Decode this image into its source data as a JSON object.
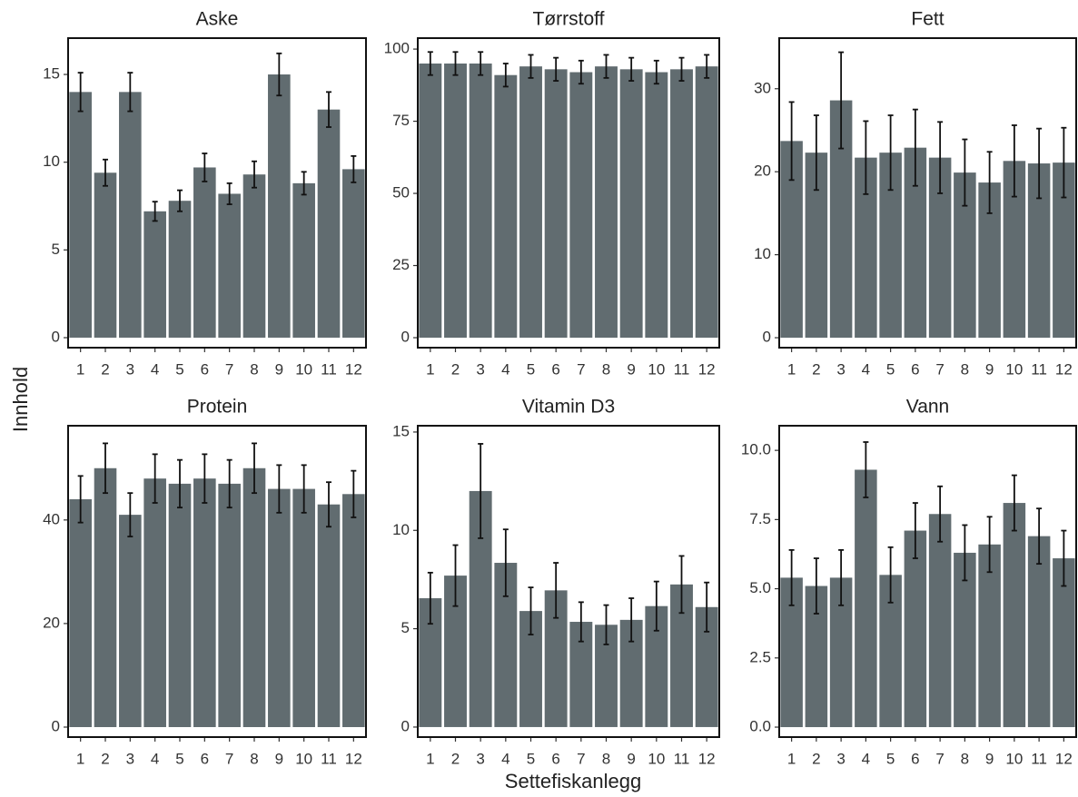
{
  "x_label": "Settefiskanlegg",
  "y_label": "Innhold",
  "chart_data": [
    {
      "type": "bar",
      "title": "Aske",
      "color": "#616c70",
      "categories": [
        "1",
        "2",
        "3",
        "4",
        "5",
        "6",
        "7",
        "8",
        "9",
        "10",
        "11",
        "12"
      ],
      "values": [
        14,
        9.4,
        14,
        7.2,
        7.8,
        9.7,
        8.2,
        9.3,
        15,
        8.8,
        13,
        9.6
      ],
      "errors": [
        1.1,
        0.75,
        1.1,
        0.55,
        0.6,
        0.8,
        0.6,
        0.75,
        1.2,
        0.65,
        1.0,
        0.75
      ],
      "ylim": [
        -0.57,
        17.07
      ],
      "yticks": [
        0,
        5,
        10,
        15
      ]
    },
    {
      "type": "bar",
      "title": "Tørrstoff",
      "color": "#616c70",
      "categories": [
        "1",
        "2",
        "3",
        "4",
        "5",
        "6",
        "7",
        "8",
        "9",
        "10",
        "11",
        "12"
      ],
      "values": [
        95,
        95,
        95,
        91,
        94,
        93,
        92,
        94,
        93,
        92,
        93,
        94
      ],
      "errors": [
        4,
        4,
        4,
        4,
        4,
        4,
        4,
        4,
        4,
        4,
        4,
        4
      ],
      "ylim": [
        -3.46,
        103.8
      ],
      "yticks": [
        0,
        25,
        50,
        75,
        100
      ]
    },
    {
      "type": "bar",
      "title": "Fett",
      "color": "#616c70",
      "categories": [
        "1",
        "2",
        "3",
        "4",
        "5",
        "6",
        "7",
        "8",
        "9",
        "10",
        "11",
        "12"
      ],
      "values": [
        23.7,
        22.3,
        28.6,
        21.7,
        22.3,
        22.9,
        21.7,
        19.9,
        18.7,
        21.3,
        21.0,
        21.1
      ],
      "errors": [
        4.7,
        4.5,
        5.8,
        4.4,
        4.5,
        4.6,
        4.3,
        4.0,
        3.7,
        4.3,
        4.2,
        4.2
      ],
      "ylim": [
        -1.2,
        36.1
      ],
      "yticks": [
        0,
        10,
        20,
        30
      ]
    },
    {
      "type": "bar",
      "title": "Protein",
      "color": "#616c70",
      "categories": [
        "1",
        "2",
        "3",
        "4",
        "5",
        "6",
        "7",
        "8",
        "9",
        "10",
        "11",
        "12"
      ],
      "values": [
        44,
        50,
        41,
        48,
        47,
        48,
        47,
        50,
        46,
        46,
        43,
        45
      ],
      "errors": [
        4.5,
        4.8,
        4.2,
        4.7,
        4.6,
        4.7,
        4.6,
        4.8,
        4.6,
        4.6,
        4.3,
        4.5
      ],
      "ylim": [
        -1.93,
        58.2
      ],
      "yticks": [
        0,
        20,
        40
      ]
    },
    {
      "type": "bar",
      "title": "Vitamin D3",
      "color": "#616c70",
      "categories": [
        "1",
        "2",
        "3",
        "4",
        "5",
        "6",
        "7",
        "8",
        "9",
        "10",
        "11",
        "12"
      ],
      "values": [
        6.55,
        7.7,
        12,
        8.35,
        5.9,
        6.95,
        5.35,
        5.2,
        5.45,
        6.15,
        7.25,
        6.1
      ],
      "errors": [
        1.3,
        1.55,
        2.4,
        1.7,
        1.2,
        1.4,
        1.0,
        1.0,
        1.1,
        1.25,
        1.45,
        1.25
      ],
      "ylim": [
        -0.51,
        15.32
      ],
      "yticks": [
        0,
        5,
        10,
        15
      ]
    },
    {
      "type": "bar",
      "title": "Vann",
      "color": "#616c70",
      "categories": [
        "1",
        "2",
        "3",
        "4",
        "5",
        "6",
        "7",
        "8",
        "9",
        "10",
        "11",
        "12"
      ],
      "values": [
        5.4,
        5.1,
        5.4,
        9.3,
        5.5,
        7.1,
        7.7,
        6.3,
        6.6,
        8.1,
        6.9,
        6.1
      ],
      "errors": [
        1.0,
        1.0,
        1.0,
        1.0,
        1.0,
        1.0,
        1.0,
        1.0,
        1.0,
        1.0,
        1.0,
        1.0
      ],
      "ylim": [
        -0.36,
        10.89
      ],
      "yticks": [
        {
          "value": 0,
          "label": "0.0"
        },
        {
          "value": 2.5,
          "label": "2.5"
        },
        {
          "value": 5,
          "label": "5.0"
        },
        {
          "value": 7.5,
          "label": "7.5"
        },
        {
          "value": 10,
          "label": "10.0"
        }
      ]
    }
  ]
}
